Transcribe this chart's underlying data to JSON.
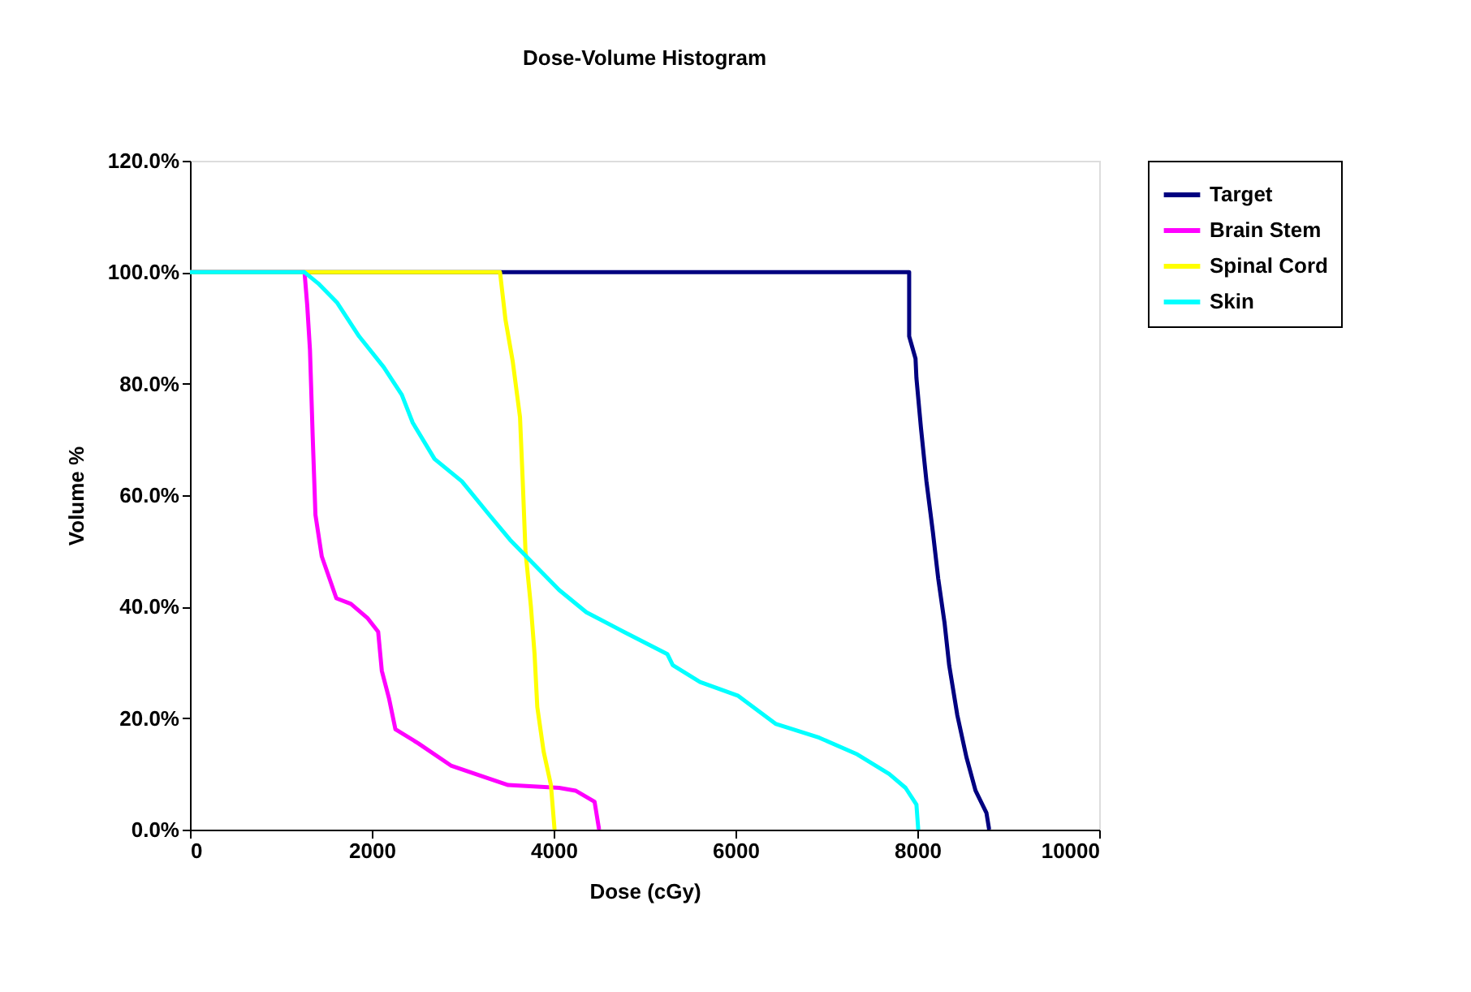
{
  "chart_data": {
    "type": "line",
    "title": "Dose-Volume Histogram",
    "xlabel": "Dose (cGy)",
    "ylabel": "Volume %",
    "xlim": [
      0,
      10000
    ],
    "xticks": [
      0,
      2000,
      4000,
      6000,
      8000,
      10000
    ],
    "ylim": [
      0,
      120
    ],
    "yticks": [
      {
        "value": 0,
        "label": "0.0%"
      },
      {
        "value": 20,
        "label": "20.0%"
      },
      {
        "value": 40,
        "label": "40.0%"
      },
      {
        "value": 60,
        "label": "60.0%"
      },
      {
        "value": 80,
        "label": "80.0%"
      },
      {
        "value": 100,
        "label": "100.0%"
      },
      {
        "value": 120,
        "label": "120.0%"
      }
    ],
    "grid": false,
    "legend": "right",
    "marker": "none",
    "line_style": "solid",
    "series": [
      {
        "name": "Target",
        "color": "#000080",
        "x": [
          0,
          7910,
          7910,
          7980,
          7990,
          8040,
          8100,
          8170,
          8230,
          8300,
          8350,
          8440,
          8540,
          8640,
          8760,
          8790
        ],
        "values": [
          100,
          100,
          88.5,
          84.5,
          81,
          72,
          62.5,
          53.5,
          45,
          37,
          29.5,
          20.5,
          13,
          7,
          3,
          0
        ]
      },
      {
        "name": "Brain Stem",
        "color": "#ff00ff",
        "x": [
          0,
          1260,
          1290,
          1320,
          1350,
          1380,
          1450,
          1610,
          1770,
          1950,
          2070,
          2110,
          2190,
          2260,
          2510,
          2870,
          3230,
          3500,
          4060,
          4240,
          4450,
          4500
        ],
        "values": [
          100,
          100,
          94,
          86,
          70.5,
          56.5,
          49,
          41.5,
          40.5,
          38,
          35.5,
          28.5,
          23.5,
          18,
          15.5,
          11.5,
          9.5,
          8,
          7.5,
          7,
          5,
          0
        ]
      },
      {
        "name": "Spinal Cord",
        "color": "#ffff00",
        "x": [
          0,
          3410,
          3470,
          3550,
          3630,
          3660,
          3690,
          3750,
          3790,
          3820,
          3890,
          3970,
          4010
        ],
        "values": [
          100,
          100,
          91.5,
          84,
          74,
          62.5,
          50,
          40,
          31.5,
          22,
          14,
          8,
          0
        ]
      },
      {
        "name": "Skin",
        "color": "#00ffff",
        "x": [
          0,
          1260,
          1410,
          1620,
          1860,
          2130,
          2330,
          2450,
          2690,
          2990,
          3290,
          3520,
          3760,
          4060,
          4360,
          4770,
          5250,
          5310,
          5610,
          6030,
          6440,
          6920,
          7340,
          7690,
          7870,
          7990,
          8010
        ],
        "values": [
          100,
          100,
          98,
          94.5,
          88.5,
          83,
          78,
          73,
          66.5,
          62.5,
          56.5,
          52,
          48,
          43,
          39,
          35.5,
          31.5,
          29.5,
          26.5,
          24,
          19,
          16.5,
          13.5,
          10,
          7.5,
          4.5,
          0
        ]
      }
    ]
  }
}
